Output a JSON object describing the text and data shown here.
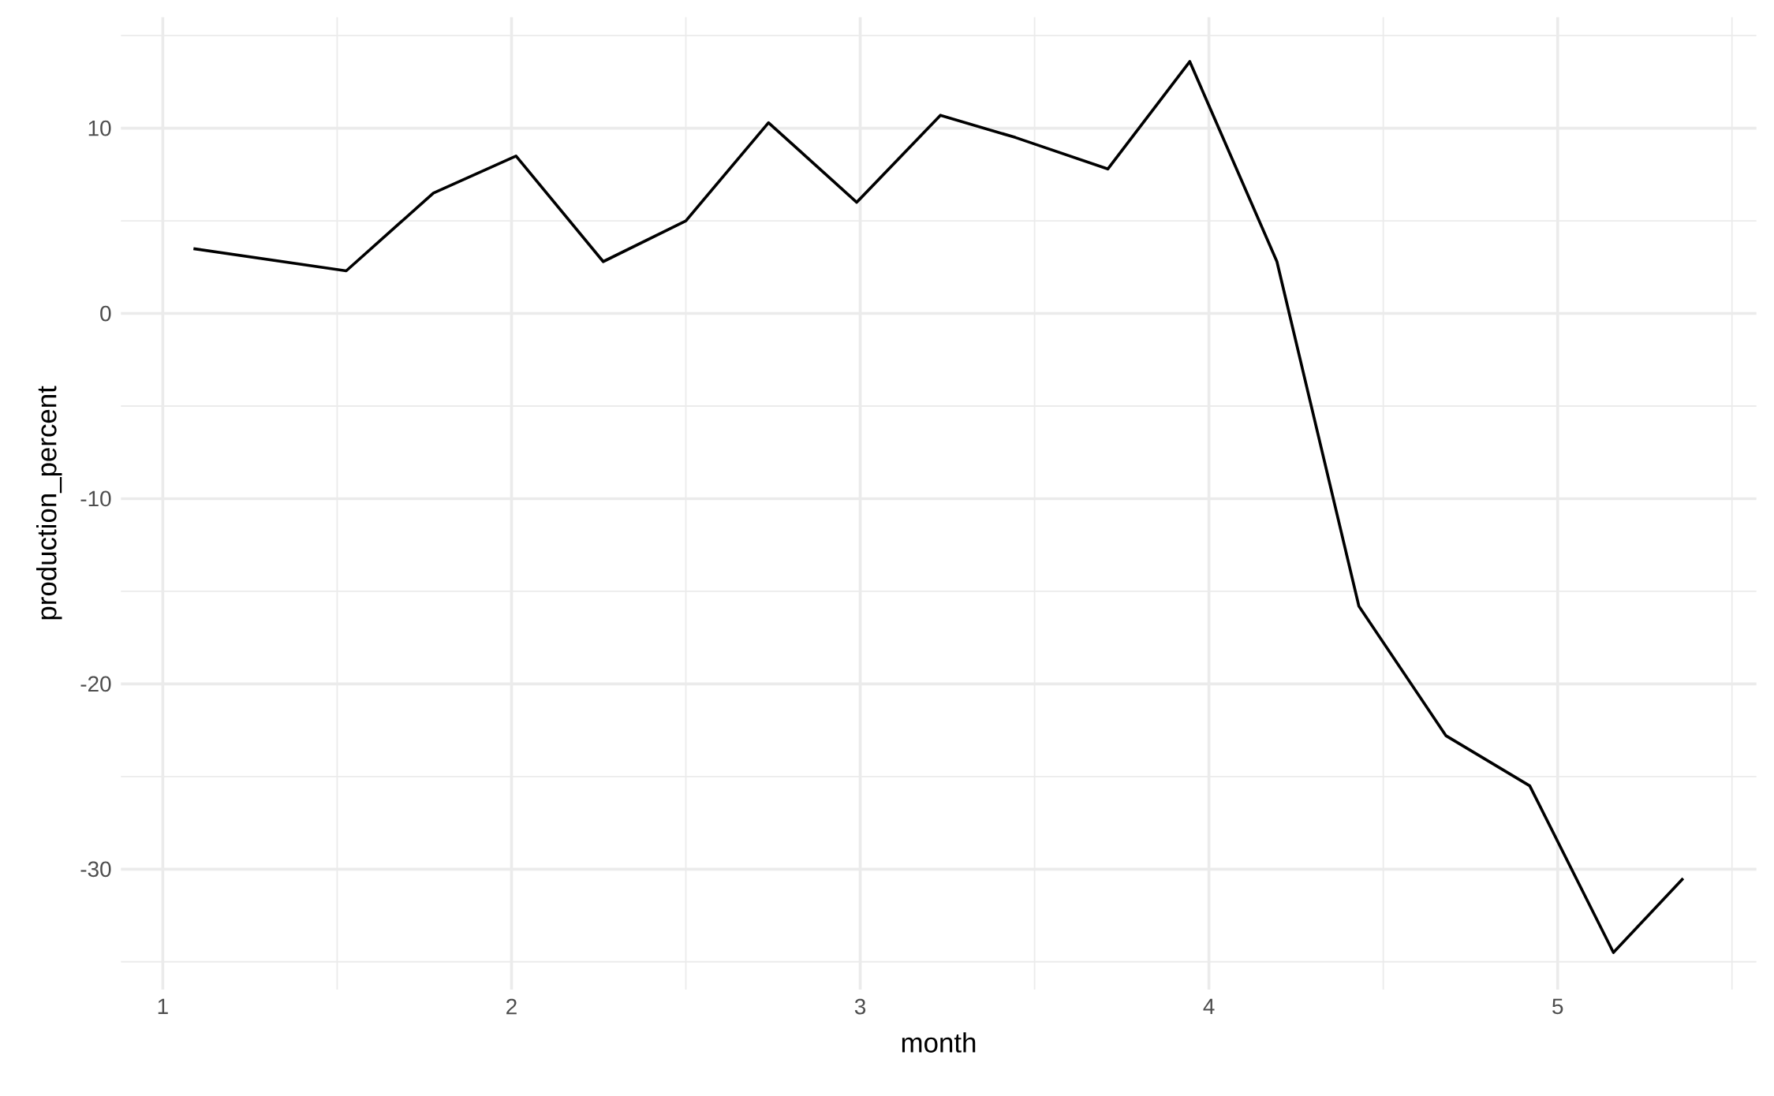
{
  "chart_data": {
    "type": "line",
    "xlabel": "month",
    "ylabel": "production_percent",
    "x": [
      1.088,
      1.526,
      1.776,
      2.013,
      2.263,
      2.5,
      2.737,
      2.99,
      3.23,
      3.445,
      3.71,
      3.945,
      4.195,
      4.43,
      4.68,
      4.92,
      5.16,
      5.36
    ],
    "values": [
      3.5,
      2.3,
      6.5,
      8.5,
      2.8,
      5.0,
      10.3,
      6.0,
      10.7,
      9.5,
      7.8,
      13.6,
      2.8,
      -15.8,
      -22.8,
      -25.5,
      -34.5,
      -30.5
    ],
    "color": "#000000",
    "xlim": [
      0.88,
      5.57
    ],
    "ylim": [
      -36.5,
      16
    ],
    "xticks": [
      1,
      {
        "value": 1.5,
        "label": null
      },
      2,
      {
        "value": 2.5,
        "label": null
      },
      3,
      {
        "value": 3.5,
        "label": null
      },
      4,
      {
        "value": 4.5,
        "label": null
      },
      5,
      {
        "value": 5.5,
        "label": null
      }
    ],
    "yticks": [
      {
        "value": -35,
        "label": null
      },
      -30,
      {
        "value": -25,
        "label": null
      },
      -20,
      {
        "value": -15,
        "label": null
      },
      -10,
      {
        "value": -5,
        "label": null
      },
      0,
      {
        "value": 5,
        "label": null
      },
      10,
      {
        "value": 15,
        "label": null
      }
    ],
    "grid": true,
    "marker": "none",
    "line_style": "solid"
  }
}
